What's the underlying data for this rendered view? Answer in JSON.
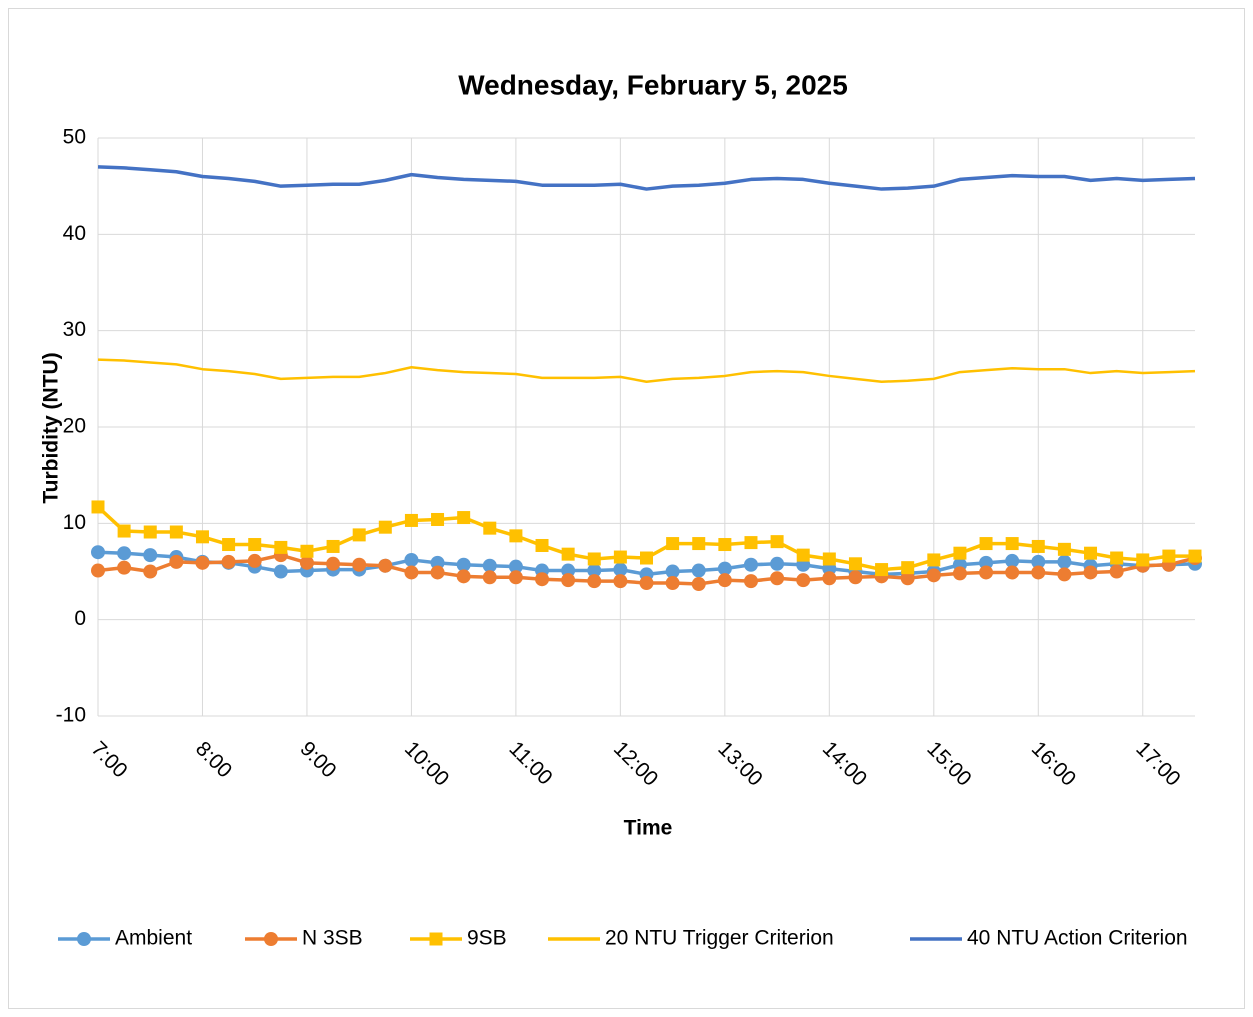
{
  "chart_data": {
    "type": "line",
    "title": "Wednesday, February 5, 2025",
    "x_label": "Time",
    "y_label": "Turbidity (NTU)",
    "categories": [
      "7:00",
      null,
      null,
      null,
      "8:00",
      null,
      null,
      null,
      "9:00",
      null,
      null,
      null,
      "10:00",
      null,
      null,
      null,
      "11:00",
      null,
      null,
      null,
      "12:00",
      null,
      null,
      null,
      "13:00",
      null,
      null,
      null,
      "14:00",
      null,
      null,
      null,
      "15:00",
      null,
      null,
      null,
      "16:00",
      null,
      null,
      null,
      "17:00",
      null,
      null
    ],
    "ylim": [
      -10,
      50
    ],
    "yticks": [
      -10,
      0,
      10,
      20,
      30,
      40,
      50
    ],
    "grid": true,
    "legend": "bottom",
    "series": [
      {
        "name": "Ambient",
        "color": "#5b9bd5",
        "marker": "circle",
        "values": [
          7.0,
          6.9,
          6.7,
          6.5,
          6.0,
          5.9,
          5.5,
          5.0,
          5.1,
          5.2,
          5.2,
          5.6,
          6.2,
          5.9,
          5.7,
          5.6,
          5.5,
          5.1,
          5.1,
          5.1,
          5.2,
          4.7,
          5.0,
          5.1,
          5.3,
          5.7,
          5.8,
          5.7,
          5.3,
          5.0,
          4.7,
          4.8,
          5.0,
          5.7,
          5.9,
          6.1,
          6.0,
          6.0,
          5.6,
          5.8,
          5.6,
          5.7,
          5.8
        ]
      },
      {
        "name": "N 3SB",
        "color": "#ed7d31",
        "marker": "circle",
        "values": [
          5.1,
          5.4,
          5.0,
          6.0,
          5.9,
          6.0,
          6.1,
          6.7,
          5.9,
          5.8,
          5.7,
          5.6,
          4.9,
          4.9,
          4.5,
          4.4,
          4.4,
          4.2,
          4.1,
          4.0,
          4.0,
          3.8,
          3.8,
          3.7,
          4.1,
          4.0,
          4.3,
          4.1,
          4.3,
          4.4,
          4.5,
          4.3,
          4.6,
          4.8,
          4.9,
          4.9,
          4.9,
          4.7,
          4.9,
          5.0,
          5.6,
          5.7,
          6.4
        ]
      },
      {
        "name": "9SB",
        "color": "#ffc000",
        "marker": "square",
        "values": [
          11.7,
          9.2,
          9.1,
          9.1,
          8.6,
          7.8,
          7.8,
          7.5,
          7.1,
          7.6,
          8.8,
          9.6,
          10.3,
          10.4,
          10.6,
          9.5,
          8.7,
          7.7,
          6.8,
          6.3,
          6.5,
          6.4,
          7.9,
          7.9,
          7.8,
          8.0,
          8.1,
          6.7,
          6.3,
          5.8,
          5.2,
          5.4,
          6.2,
          6.9,
          7.9,
          7.9,
          7.6,
          7.3,
          6.9,
          6.4,
          6.2,
          6.6,
          6.6
        ]
      },
      {
        "name": "20 NTU Trigger Criterion",
        "color": "#ffc000",
        "marker": "none",
        "values": [
          27.0,
          26.9,
          26.7,
          26.5,
          26.0,
          25.8,
          25.5,
          25.0,
          25.1,
          25.2,
          25.2,
          25.6,
          26.2,
          25.9,
          25.7,
          25.6,
          25.5,
          25.1,
          25.1,
          25.1,
          25.2,
          24.7,
          25.0,
          25.1,
          25.3,
          25.7,
          25.8,
          25.7,
          25.3,
          25.0,
          24.7,
          24.8,
          25.0,
          25.7,
          25.9,
          26.1,
          26.0,
          26.0,
          25.6,
          25.8,
          25.6,
          25.7,
          25.8
        ]
      },
      {
        "name": "40 NTU Action Criterion",
        "color": "#4472c4",
        "marker": "none",
        "values": [
          47.0,
          46.9,
          46.7,
          46.5,
          46.0,
          45.8,
          45.5,
          45.0,
          45.1,
          45.2,
          45.2,
          45.6,
          46.2,
          45.9,
          45.7,
          45.6,
          45.5,
          45.1,
          45.1,
          45.1,
          45.2,
          44.7,
          45.0,
          45.1,
          45.3,
          45.7,
          45.8,
          45.7,
          45.3,
          45.0,
          44.7,
          44.8,
          45.0,
          45.7,
          45.9,
          46.1,
          46.0,
          46.0,
          45.6,
          45.8,
          45.6,
          45.7,
          45.8
        ]
      }
    ]
  }
}
